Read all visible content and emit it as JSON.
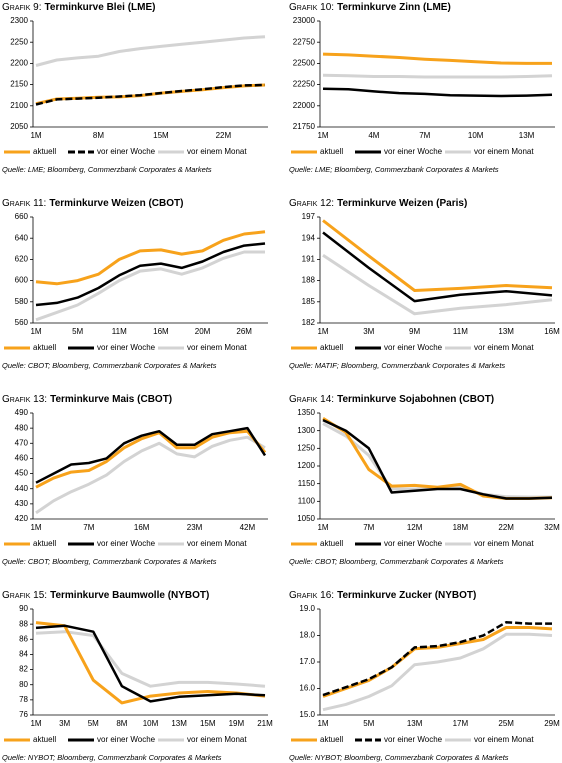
{
  "chart_data": [
    {
      "type": "line",
      "label": "Grafik 9:",
      "title": "Terminkurve Blei (LME)",
      "categories": [
        "1M",
        null,
        null,
        "8M",
        null,
        null,
        "15M",
        null,
        null,
        "22M",
        null,
        null
      ],
      "series": [
        {
          "name": "vor einem Monat",
          "color": "#d3d3d3",
          "values": [
            2195,
            2208,
            2213,
            2217,
            2228,
            2235,
            2240,
            2245,
            2250,
            2255,
            2260,
            2263
          ]
        },
        {
          "name": "aktuell",
          "color": "#f7a21b",
          "values": [
            2105,
            2116,
            2118,
            2120,
            2121,
            2124,
            2130,
            2134,
            2138,
            2143,
            2147,
            2149
          ]
        },
        {
          "name": "vor einer Woche",
          "color": "#000000",
          "dashed": true,
          "values": [
            2103,
            2115,
            2117,
            2119,
            2122,
            2125,
            2130,
            2135,
            2139,
            2144,
            2148,
            2149
          ]
        }
      ],
      "ylim": [
        2050,
        2300
      ],
      "yticks": [
        2050,
        2100,
        2150,
        2200,
        2250,
        2300
      ],
      "source": "Quelle: LME; Bloomberg, Commerzbank Corporates & Markets"
    },
    {
      "type": "line",
      "label": "Grafik 10:",
      "title": "Terminkurve Zinn (LME)",
      "categories": [
        "1M",
        null,
        "4M",
        null,
        "7M",
        null,
        "10M",
        null,
        "13M",
        null
      ],
      "series": [
        {
          "name": "vor einem Monat",
          "color": "#d3d3d3",
          "values": [
            22360,
            22355,
            22345,
            22345,
            22340,
            22340,
            22340,
            22340,
            22345,
            22355
          ]
        },
        {
          "name": "aktuell",
          "color": "#f7a21b",
          "values": [
            22610,
            22600,
            22585,
            22570,
            22550,
            22535,
            22520,
            22505,
            22500,
            22500
          ]
        },
        {
          "name": "vor einer Woche",
          "color": "#000000",
          "values": [
            22200,
            22195,
            22170,
            22150,
            22140,
            22125,
            22120,
            22115,
            22120,
            22130
          ]
        }
      ],
      "ylim": [
        21750,
        23000
      ],
      "yticks": [
        21750,
        22000,
        22250,
        22500,
        22750,
        23000
      ],
      "source": "Quelle: LME; Bloomberg, Commerzbank Corporates & Markets"
    },
    {
      "type": "line",
      "label": "Grafik 11:",
      "title": "Terminkurve Weizen (CBOT)",
      "categories": [
        "1M",
        null,
        "5M",
        null,
        "11M",
        null,
        "16M",
        null,
        "20M",
        null,
        "26M",
        null
      ],
      "series": [
        {
          "name": "vor einem Monat",
          "color": "#d3d3d3",
          "values": [
            563,
            570,
            577,
            588,
            600,
            609,
            611,
            606,
            612,
            621,
            627,
            627
          ]
        },
        {
          "name": "aktuell",
          "color": "#f7a21b",
          "values": [
            599,
            597,
            600,
            606,
            620,
            628,
            629,
            625,
            628,
            638,
            644,
            646
          ]
        },
        {
          "name": "vor einer Woche",
          "color": "#000000",
          "values": [
            577,
            579,
            584,
            593,
            605,
            614,
            616,
            612,
            618,
            627,
            633,
            635
          ]
        }
      ],
      "ylim": [
        560,
        660
      ],
      "yticks": [
        560,
        580,
        600,
        620,
        640,
        660
      ],
      "source": "Quelle: CBOT; Bloomberg, Commerzbank Corporates & Markets"
    },
    {
      "type": "line",
      "label": "Grafik 12:",
      "title": "Terminkurve Weizen (Paris)",
      "categories": [
        "1M",
        "3M",
        "9M",
        "11M",
        "13M",
        "16M"
      ],
      "series": [
        {
          "name": "vor einem Monat",
          "color": "#d3d3d3",
          "values": [
            191.6,
            187.3,
            183.3,
            184.1,
            184.6,
            185.3
          ]
        },
        {
          "name": "aktuell",
          "color": "#f7a21b",
          "values": [
            196.5,
            191.5,
            186.6,
            186.9,
            187.3,
            187.0
          ]
        },
        {
          "name": "vor einer Woche",
          "color": "#000000",
          "values": [
            194.8,
            189.8,
            185.1,
            186.0,
            186.5,
            185.9
          ]
        }
      ],
      "ylim": [
        182,
        197
      ],
      "yticks": [
        182,
        185,
        188,
        191,
        194,
        197
      ],
      "source": "Quelle: MATIF; Bloomberg, Commerzbank Corporates & Markets"
    },
    {
      "type": "line",
      "label": "Grafik 13:",
      "title": "Terminkurve Mais (CBOT)",
      "categories": [
        "1M",
        null,
        null,
        "7M",
        null,
        null,
        "16M",
        null,
        null,
        "23M",
        null,
        null,
        "42M",
        null
      ],
      "series": [
        {
          "name": "vor einem Monat",
          "color": "#d3d3d3",
          "values": [
            424,
            432,
            438,
            443,
            449,
            458,
            465,
            470,
            463,
            461,
            468,
            472,
            474,
            467
          ]
        },
        {
          "name": "aktuell",
          "color": "#f7a21b",
          "values": [
            441,
            447,
            451,
            452,
            458,
            467,
            473,
            477,
            467,
            467,
            474,
            477,
            478,
            464
          ]
        },
        {
          "name": "vor einer Woche",
          "color": "#000000",
          "values": [
            444,
            450,
            456,
            457,
            460,
            470,
            475,
            478,
            469,
            469,
            476,
            478,
            480,
            462
          ]
        }
      ],
      "ylim": [
        420,
        490
      ],
      "yticks": [
        420,
        430,
        440,
        450,
        460,
        470,
        480,
        490
      ],
      "source": "Quelle: CBOT; Bloomberg, Commerzbank Corporates & Markets"
    },
    {
      "type": "line",
      "label": "Grafik 14:",
      "title": "Terminkurve Sojabohnen (CBOT)",
      "categories": [
        "1M",
        null,
        "7M",
        null,
        "12M",
        null,
        "18M",
        null,
        "22M",
        null,
        "32M"
      ],
      "series": [
        {
          "name": "vor einem Monat",
          "color": "#d3d3d3",
          "values": [
            1320,
            1285,
            1230,
            1135,
            1135,
            1138,
            1140,
            1120,
            1113,
            1112,
            1112
          ]
        },
        {
          "name": "aktuell",
          "color": "#f7a21b",
          "values": [
            1335,
            1295,
            1190,
            1143,
            1145,
            1140,
            1148,
            1115,
            1108,
            1108,
            1110
          ]
        },
        {
          "name": "vor einer Woche",
          "color": "#000000",
          "values": [
            1330,
            1300,
            1250,
            1125,
            1130,
            1135,
            1135,
            1120,
            1108,
            1108,
            1110
          ]
        }
      ],
      "ylim": [
        1050,
        1350
      ],
      "yticks": [
        1050,
        1100,
        1150,
        1200,
        1250,
        1300,
        1350
      ],
      "source": "Quelle: CBOT; Bloomberg, Commerzbank Corporates & Markets"
    },
    {
      "type": "line",
      "label": "Grafik 15:",
      "title": "Terminkurve Baumwolle (NYBOT)",
      "categories": [
        "1M",
        "3M",
        "5M",
        "8M",
        "10M",
        "13M",
        "15M",
        "19M",
        "21M"
      ],
      "series": [
        {
          "name": "vor einem Monat",
          "color": "#d3d3d3",
          "values": [
            86.8,
            87.0,
            86.5,
            81.5,
            79.8,
            80.3,
            80.3,
            80.1,
            79.8
          ]
        },
        {
          "name": "aktuell",
          "color": "#f7a21b",
          "values": [
            88.2,
            87.8,
            80.6,
            77.6,
            78.5,
            78.9,
            79.1,
            78.9,
            78.5
          ]
        },
        {
          "name": "vor einer Woche",
          "color": "#000000",
          "values": [
            87.5,
            87.8,
            87.0,
            79.8,
            77.8,
            78.4,
            78.6,
            78.8,
            78.6
          ]
        }
      ],
      "ylim": [
        76,
        90
      ],
      "yticks": [
        76,
        78,
        80,
        82,
        84,
        86,
        88,
        90
      ],
      "source": "Quelle: NYBOT; Bloomberg, Commerzbank Corporates & Markets"
    },
    {
      "type": "line",
      "label": "Grafik 16:",
      "title": "Terminkurve Zucker (NYBOT)",
      "categories": [
        "1M",
        null,
        "5M",
        null,
        "13M",
        null,
        "17M",
        null,
        "25M",
        null,
        "29M"
      ],
      "series": [
        {
          "name": "vor einem Monat",
          "color": "#d3d3d3",
          "values": [
            15.2,
            15.4,
            15.7,
            16.1,
            16.9,
            17.0,
            17.15,
            17.5,
            18.05,
            18.05,
            18.0
          ]
        },
        {
          "name": "aktuell",
          "color": "#f7a21b",
          "values": [
            15.7,
            16.0,
            16.3,
            16.8,
            17.5,
            17.55,
            17.7,
            17.85,
            18.3,
            18.3,
            18.25
          ]
        },
        {
          "name": "vor einer Woche",
          "color": "#000000",
          "dashed": true,
          "values": [
            15.75,
            16.05,
            16.35,
            16.8,
            17.55,
            17.6,
            17.75,
            18.0,
            18.5,
            18.45,
            18.45
          ]
        }
      ],
      "ylim": [
        15,
        19
      ],
      "yticks": [
        {
          "value": 15,
          "label": "15.0"
        },
        {
          "value": 16,
          "label": "16.0"
        },
        {
          "value": 17,
          "label": "17.0"
        },
        {
          "value": 18,
          "label": "18.0"
        },
        {
          "value": 19,
          "label": "19.0"
        }
      ],
      "source": "Quelle: NYBOT; Bloomberg, Commerzbank Corporates & Markets"
    }
  ]
}
